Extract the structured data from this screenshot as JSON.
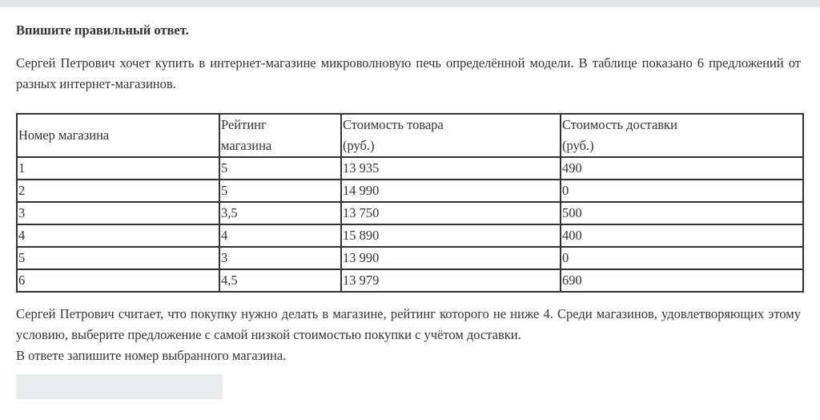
{
  "instruction": "Впишите правильный ответ.",
  "intro": "Сергей Петрович хочет купить в интернет-магазине микроволновую печь определённой модели. В таблице показано 6 предложений от разных интернет-магазинов.",
  "table": {
    "headers": [
      "Номер магазина",
      "Рейтинг магазина",
      "Стоимость товара (руб.)",
      "Стоимость доставки (руб.)"
    ],
    "header_lines": [
      [
        "Номер магазина"
      ],
      [
        "Рейтинг",
        "магазина"
      ],
      [
        "Стоимость товара",
        "(руб.)"
      ],
      [
        "Стоимость доставки",
        "(руб.)"
      ]
    ],
    "rows": [
      [
        "1",
        "5",
        "13 935",
        "490"
      ],
      [
        "2",
        "5",
        "14 990",
        "0"
      ],
      [
        "3",
        "3,5",
        "13 750",
        "500"
      ],
      [
        "4",
        "4",
        "15 890",
        "400"
      ],
      [
        "5",
        "3",
        "13 990",
        "0"
      ],
      [
        "6",
        "4,5",
        "13 979",
        "690"
      ]
    ]
  },
  "condition": "Сергей Петрович считает, что покупку нужно делать в магазине, рейтинг которого не ниже 4. Среди магазинов, удовлетворяющих этому условию, выберите предложение с самой низкой стоимостью покупки с учётом доставки.",
  "answer_prompt": "В ответе запишите номер выбранного магазина.",
  "answer_value": ""
}
